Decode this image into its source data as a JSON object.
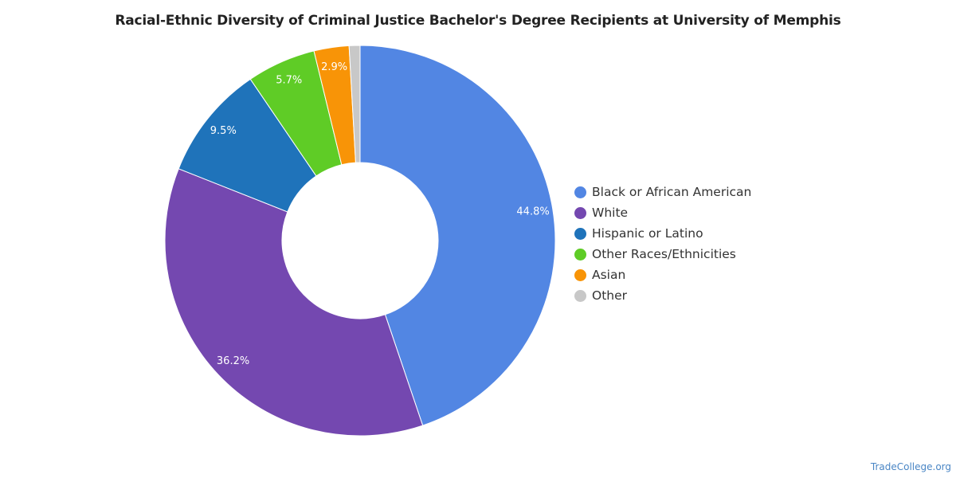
{
  "chart_data": {
    "type": "pie",
    "style": "donut",
    "title": "Racial-Ethnic Diversity of Criminal Justice Bachelor's Degree Recipients at University of Memphis",
    "slices": [
      {
        "label": "Black or African American",
        "value": 44.8,
        "value_label": "44.8%",
        "color": "#5286e3"
      },
      {
        "label": "White",
        "value": 36.2,
        "value_label": "36.2%",
        "color": "#7448b0"
      },
      {
        "label": "Hispanic or Latino",
        "value": 9.5,
        "value_label": "9.5%",
        "color": "#1f73ba"
      },
      {
        "label": "Other Races/Ethnicities",
        "value": 5.7,
        "value_label": "5.7%",
        "color": "#5fcc26"
      },
      {
        "label": "Asian",
        "value": 2.9,
        "value_label": "2.9%",
        "color": "#f89407"
      },
      {
        "label": "Other",
        "value": 0.9,
        "value_label": "",
        "color": "#c8c8c8"
      }
    ],
    "legend_position": "right",
    "start_angle": "12 o'clock",
    "direction": "clockwise"
  },
  "watermark": "TradeCollege.org"
}
